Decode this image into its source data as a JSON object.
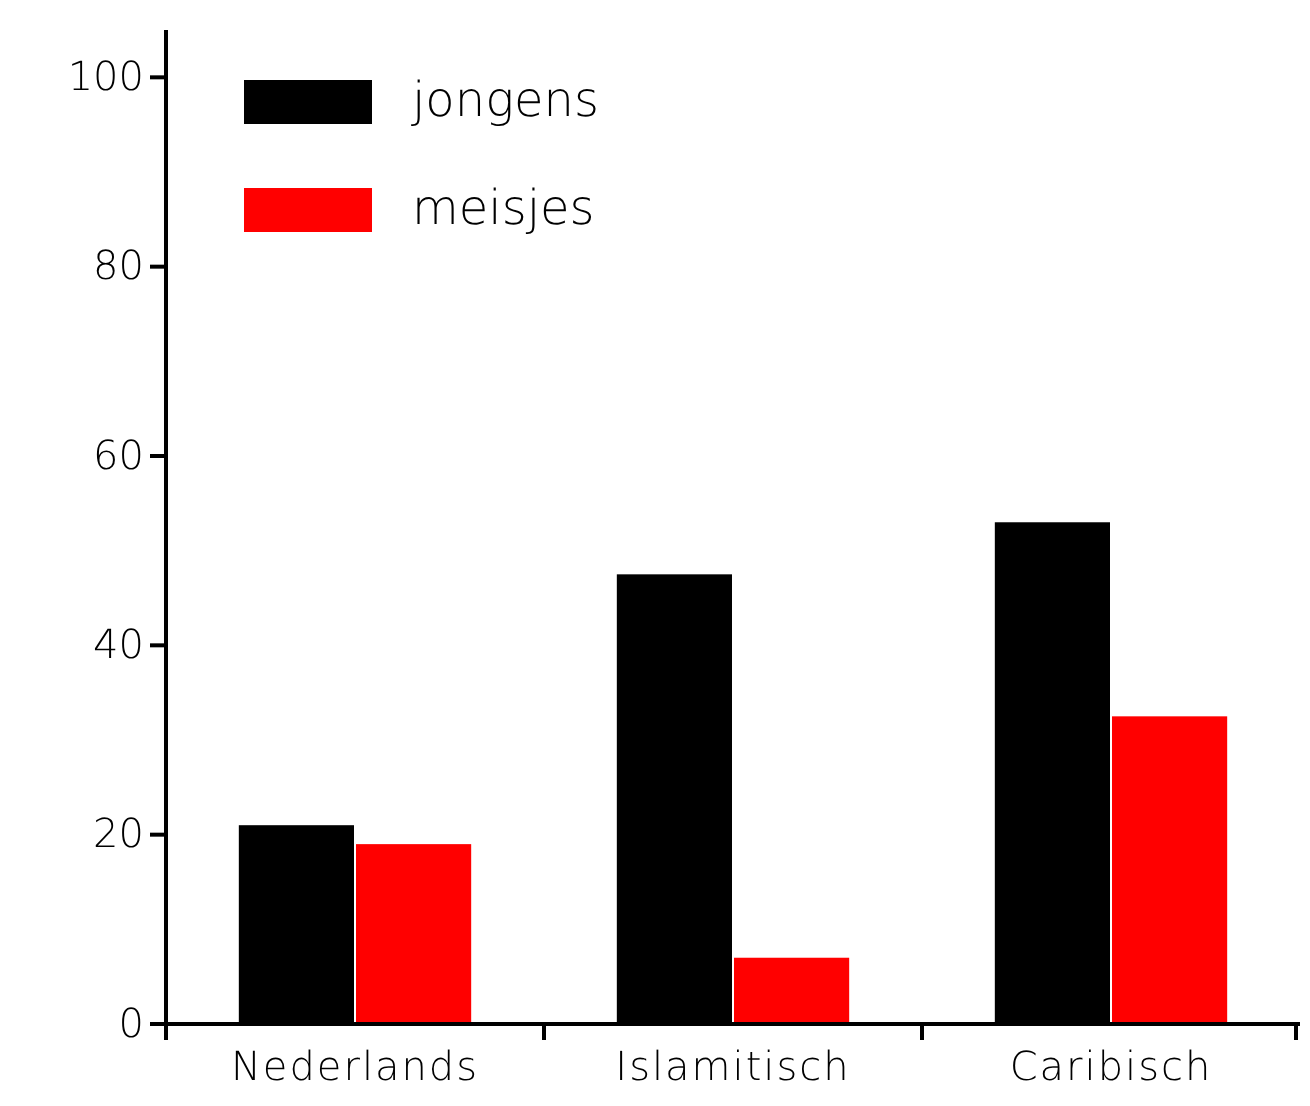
{
  "chart_data": {
    "type": "bar",
    "categories": [
      "Nederlands",
      "Islamitisch",
      "Caribisch"
    ],
    "series": [
      {
        "name": "jongens",
        "color": "#000000",
        "values": [
          21,
          47.5,
          53
        ]
      },
      {
        "name": "meisjes",
        "color": "#ff0000",
        "values": [
          19,
          7,
          32.5
        ]
      }
    ],
    "ylim": [
      0,
      105
    ],
    "yticks": [
      0,
      20,
      40,
      60,
      80,
      100
    ],
    "grid": false,
    "legend": "top left"
  }
}
